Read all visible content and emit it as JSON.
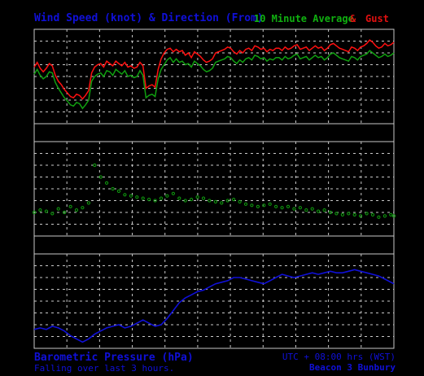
{
  "header": {
    "title": "Wind Speed (knot) & Direction (From)",
    "legend_avg": "10 Minute Average",
    "legend_amp": "&",
    "legend_gust": "Gust"
  },
  "footer": {
    "baro_title": "Barometric Pressure (hPa)",
    "baro_trend": "Falling over last 3 hours.",
    "utc": "UTC + 08:00 hrs (WST)",
    "station": "Beacon 3 Bunbury"
  },
  "colors": {
    "background": "#000000",
    "grid": "#c8c8c8",
    "avg": "#10a010",
    "gust": "#ff1010",
    "direction": "#10a010",
    "pressure": "#1010d8",
    "text_blue": "#1010d8"
  },
  "chart_data": [
    {
      "type": "line",
      "name": "wind-speed",
      "x": [
        0,
        6,
        12,
        18,
        24,
        30,
        36,
        42,
        48,
        54,
        60,
        66,
        72,
        78,
        84,
        90,
        96,
        102,
        108,
        114,
        120,
        126,
        132,
        138,
        144,
        150,
        156,
        162,
        168,
        174,
        180,
        186,
        192,
        198,
        204,
        210,
        216,
        222,
        228,
        234,
        240,
        246,
        252,
        258,
        264,
        270,
        276,
        282,
        288,
        294,
        300,
        306,
        312,
        318,
        324,
        330,
        336,
        342,
        348,
        354,
        360,
        366,
        372,
        378,
        384,
        390,
        396,
        402,
        408,
        414,
        420,
        426,
        432,
        438,
        444,
        450,
        456,
        462,
        468,
        474,
        480,
        486,
        492,
        498,
        504,
        510,
        516,
        522,
        528,
        534,
        540,
        546,
        552,
        558,
        564,
        570,
        576,
        582,
        588,
        594,
        600,
        606,
        612,
        618,
        624,
        630,
        636,
        642,
        648,
        654,
        660,
        666,
        672,
        678,
        684,
        690,
        696,
        702,
        708,
        714
      ],
      "series": [
        {
          "role": "avg",
          "values": [
            10.2,
            10.6,
            10.1,
            9.8,
            10.0,
            10.4,
            10.3,
            9.5,
            9.0,
            8.6,
            8.2,
            7.9,
            7.6,
            7.5,
            7.8,
            7.7,
            7.3,
            7.6,
            8.0,
            9.6,
            10.0,
            10.2,
            10.3,
            10.0,
            10.5,
            10.4,
            10.1,
            10.6,
            10.4,
            10.2,
            10.5,
            10.0,
            10.1,
            9.9,
            10.0,
            10.5,
            10.1,
            8.2,
            8.4,
            8.5,
            8.3,
            9.8,
            10.6,
            11.0,
            11.4,
            11.6,
            11.2,
            11.5,
            11.2,
            11.3,
            11.0,
            11.1,
            10.8,
            11.3,
            11.1,
            10.9,
            10.6,
            10.4,
            10.5,
            10.7,
            11.2,
            11.3,
            11.4,
            11.5,
            11.7,
            11.6,
            11.3,
            11.1,
            11.4,
            11.2,
            11.5,
            11.6,
            11.4,
            11.8,
            11.7,
            11.5,
            11.6,
            11.3,
            11.5,
            11.4,
            11.6,
            11.6,
            11.4,
            11.7,
            11.5,
            11.6,
            11.8,
            11.9,
            11.5,
            11.6,
            11.7,
            11.4,
            11.6,
            11.8,
            11.6,
            11.7,
            11.4,
            11.6,
            11.9,
            12.0,
            11.8,
            11.6,
            11.5,
            11.4,
            11.3,
            11.7,
            11.6,
            11.4,
            11.7,
            11.8,
            11.9,
            12.2,
            12.0,
            11.8,
            11.6,
            11.7,
            11.9,
            11.7,
            11.8,
            12.0
          ],
          "note_color": "avg"
        },
        {
          "role": "gust",
          "values": [
            10.8,
            11.2,
            10.7,
            10.4,
            10.7,
            11.1,
            10.9,
            10.1,
            9.6,
            9.3,
            8.9,
            8.6,
            8.3,
            8.2,
            8.5,
            8.4,
            8.1,
            8.4,
            8.8,
            10.3,
            10.8,
            11.0,
            11.1,
            10.8,
            11.3,
            11.1,
            10.9,
            11.3,
            11.1,
            10.9,
            11.2,
            10.8,
            10.9,
            10.7,
            10.8,
            11.2,
            10.9,
            9.0,
            9.2,
            9.3,
            9.1,
            10.6,
            11.5,
            12.0,
            12.3,
            12.4,
            12.1,
            12.3,
            12.1,
            12.2,
            11.8,
            12.0,
            11.6,
            12.1,
            11.9,
            11.7,
            11.4,
            11.2,
            11.3,
            11.5,
            12.0,
            12.1,
            12.2,
            12.3,
            12.5,
            12.4,
            12.1,
            11.9,
            12.2,
            12.0,
            12.3,
            12.4,
            12.2,
            12.6,
            12.5,
            12.3,
            12.4,
            12.1,
            12.3,
            12.2,
            12.4,
            12.4,
            12.2,
            12.5,
            12.3,
            12.4,
            12.6,
            12.7,
            12.3,
            12.4,
            12.5,
            12.2,
            12.4,
            12.6,
            12.4,
            12.5,
            12.2,
            12.4,
            12.7,
            12.8,
            12.6,
            12.4,
            12.3,
            12.2,
            12.1,
            12.5,
            12.4,
            12.2,
            12.5,
            12.6,
            12.8,
            13.1,
            12.9,
            12.6,
            12.4,
            12.5,
            12.8,
            12.6,
            12.7,
            12.9
          ]
        }
      ],
      "ylim": [
        6,
        14
      ],
      "grid": true
    },
    {
      "type": "scatter",
      "name": "wind-direction",
      "x": [
        0,
        12,
        24,
        36,
        48,
        60,
        72,
        84,
        96,
        108,
        120,
        132,
        144,
        156,
        168,
        180,
        192,
        204,
        216,
        228,
        240,
        252,
        264,
        276,
        288,
        300,
        312,
        324,
        336,
        348,
        360,
        372,
        384,
        396,
        408,
        420,
        432,
        444,
        456,
        468,
        480,
        492,
        504,
        516,
        528,
        540,
        552,
        564,
        576,
        588,
        600,
        612,
        624,
        636,
        648,
        660,
        672,
        684,
        696,
        708,
        714
      ],
      "values": [
        200,
        202,
        201,
        199,
        203,
        200,
        205,
        202,
        204,
        208,
        240,
        230,
        225,
        220,
        218,
        215,
        214,
        213,
        212,
        211,
        210,
        212,
        214,
        216,
        212,
        210,
        211,
        213,
        212,
        210,
        209,
        208,
        210,
        211,
        209,
        207,
        206,
        205,
        206,
        207,
        205,
        204,
        205,
        203,
        204,
        202,
        203,
        201,
        202,
        200,
        199,
        198,
        199,
        198,
        197,
        199,
        198,
        196,
        197,
        198,
        197
      ],
      "ylim": [
        180,
        260
      ],
      "grid": true
    },
    {
      "type": "line",
      "name": "barometric-pressure",
      "x": [
        0,
        12,
        24,
        36,
        48,
        60,
        72,
        84,
        96,
        108,
        120,
        132,
        144,
        156,
        168,
        180,
        192,
        204,
        216,
        228,
        240,
        252,
        264,
        276,
        288,
        300,
        312,
        324,
        336,
        348,
        360,
        372,
        384,
        396,
        408,
        420,
        432,
        444,
        456,
        468,
        480,
        492,
        504,
        516,
        528,
        540,
        552,
        564,
        576,
        588,
        600,
        612,
        624,
        636,
        648,
        660,
        672,
        684,
        696,
        708,
        714
      ],
      "values": [
        1008.2,
        1008.3,
        1008.2,
        1008.4,
        1008.3,
        1008.1,
        1007.8,
        1007.6,
        1007.4,
        1007.6,
        1007.9,
        1008.1,
        1008.3,
        1008.4,
        1008.5,
        1008.3,
        1008.4,
        1008.6,
        1008.8,
        1008.6,
        1008.4,
        1008.5,
        1008.9,
        1009.4,
        1009.9,
        1010.2,
        1010.4,
        1010.6,
        1010.7,
        1010.9,
        1011.1,
        1011.2,
        1011.3,
        1011.5,
        1011.5,
        1011.4,
        1011.3,
        1011.2,
        1011.1,
        1011.3,
        1011.5,
        1011.7,
        1011.6,
        1011.5,
        1011.6,
        1011.7,
        1011.8,
        1011.7,
        1011.8,
        1011.9,
        1011.8,
        1011.8,
        1011.9,
        1012.0,
        1011.9,
        1011.8,
        1011.7,
        1011.6,
        1011.4,
        1011.2,
        1011.1
      ],
      "ylim": [
        1007,
        1013
      ],
      "grid": true
    }
  ]
}
